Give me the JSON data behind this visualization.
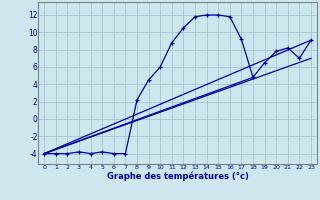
{
  "title": "",
  "xlabel": "Graphe des températures (°c)",
  "ylabel": "",
  "xlim": [
    -0.5,
    23.5
  ],
  "ylim": [
    -5.2,
    13.5
  ],
  "yticks": [
    -4,
    -2,
    0,
    2,
    4,
    6,
    8,
    10,
    12
  ],
  "xticks": [
    0,
    1,
    2,
    3,
    4,
    5,
    6,
    7,
    8,
    9,
    10,
    11,
    12,
    13,
    14,
    15,
    16,
    17,
    18,
    19,
    20,
    21,
    22,
    23
  ],
  "bg_color": "#cce8ee",
  "grid_color": "#aaccd4",
  "line_color": "#0000aa",
  "main_line": {
    "x": [
      0,
      1,
      2,
      3,
      4,
      5,
      6,
      7,
      8,
      9,
      10,
      11,
      12,
      13,
      14,
      15,
      16,
      17,
      18,
      19,
      20,
      21,
      22,
      23
    ],
    "y": [
      -4,
      -4,
      -4,
      -3.8,
      -4,
      -3.8,
      -4,
      -4,
      2.2,
      4.5,
      6.0,
      8.8,
      10.5,
      11.8,
      12,
      12,
      11.8,
      9.2,
      4.8,
      6.5,
      7.8,
      8.2,
      7.0,
      9.1
    ]
  },
  "trend_line1": {
    "x": [
      0,
      18
    ],
    "y": [
      -4,
      4.8
    ]
  },
  "trend_line2": {
    "x": [
      0,
      23
    ],
    "y": [
      -4,
      7.0
    ]
  },
  "trend_line3": {
    "x": [
      0,
      23
    ],
    "y": [
      -4,
      9.1
    ]
  }
}
